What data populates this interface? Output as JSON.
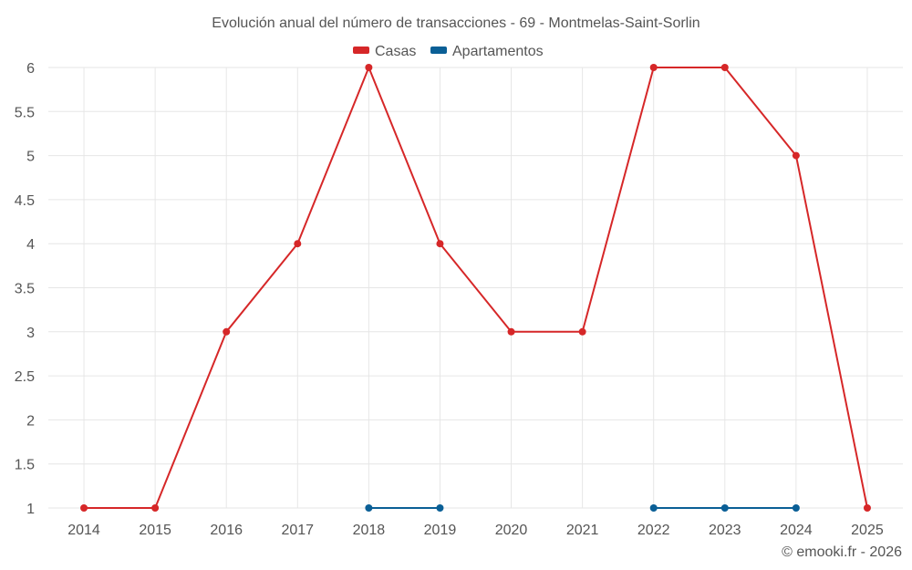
{
  "chart_data": {
    "type": "line",
    "title": "Evolución anual del número de transacciones - 69 - Montmelas-Saint-Sorlin",
    "xlabel": "",
    "ylabel": "",
    "categories": [
      "2014",
      "2015",
      "2016",
      "2017",
      "2018",
      "2019",
      "2020",
      "2021",
      "2022",
      "2023",
      "2024",
      "2025"
    ],
    "ylim": [
      1,
      6
    ],
    "yticks": [
      "1",
      "1.5",
      "2",
      "2.5",
      "3",
      "3.5",
      "4",
      "4.5",
      "5",
      "5.5",
      "6"
    ],
    "grid": true,
    "legend_position": "top-center",
    "series": [
      {
        "name": "Casas",
        "color": "#d62728",
        "values": [
          1,
          1,
          3,
          4,
          6,
          4,
          3,
          3,
          6,
          6,
          5,
          1
        ]
      },
      {
        "name": "Apartamentos",
        "color": "#0a5f96",
        "values": [
          null,
          null,
          null,
          null,
          1,
          1,
          null,
          null,
          1,
          1,
          1,
          null
        ]
      }
    ],
    "credit": "© emooki.fr - 2026"
  }
}
